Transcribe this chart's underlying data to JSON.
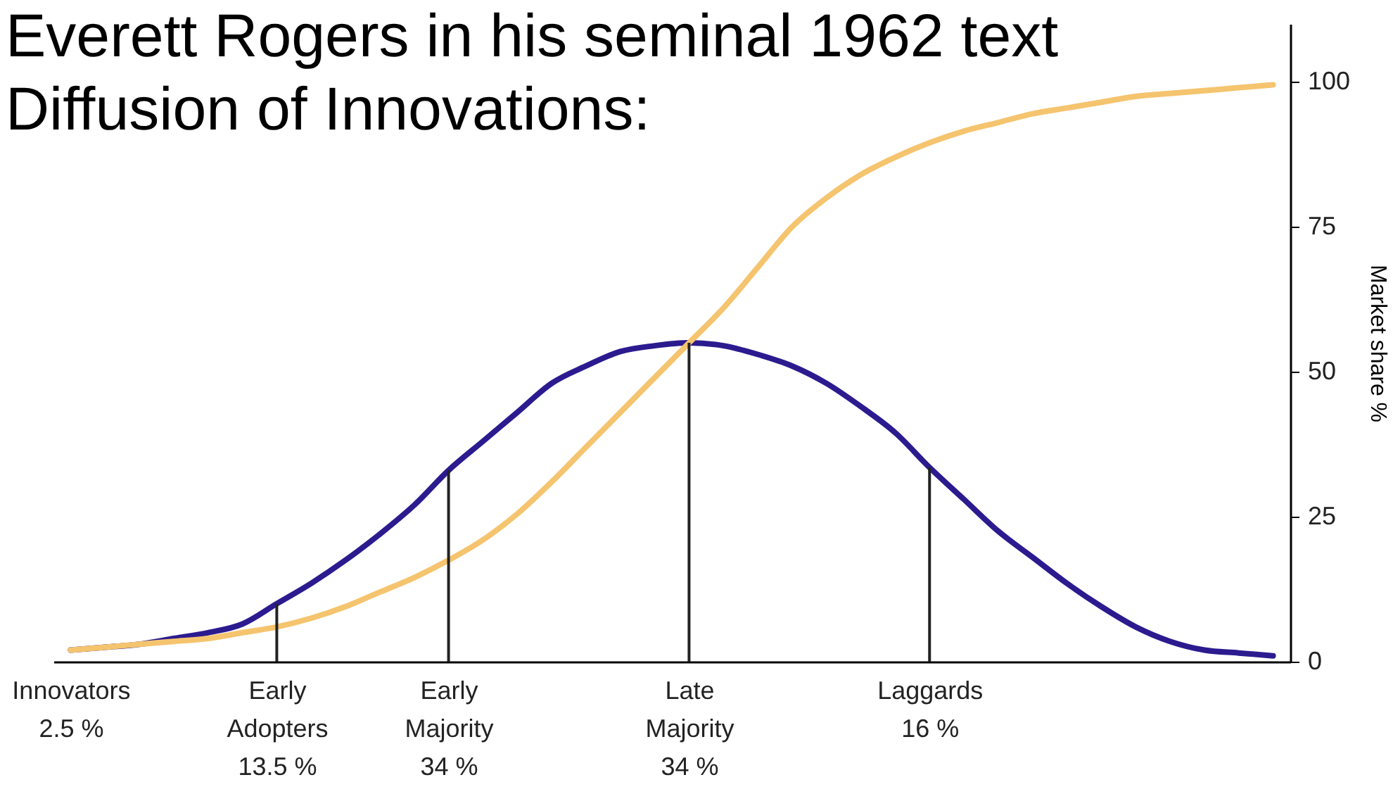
{
  "chart_data": {
    "type": "line",
    "title": "Everett Rogers in his seminal 1962 text Diffusion of Innovations:",
    "ylabel": "Market share %",
    "categories": [
      "Innovators\n2.5 %",
      null,
      null,
      null,
      null,
      null,
      "Early\nAdopters\n13.5 %",
      null,
      null,
      null,
      null,
      "Early\nMajority\n34 %",
      null,
      null,
      null,
      null,
      null,
      null,
      "Late\nMajority\n34 %",
      null,
      null,
      null,
      null,
      null,
      null,
      "Laggards\n16 %",
      null,
      null,
      null,
      null,
      null,
      null,
      null,
      null,
      null,
      null
    ],
    "series": [
      {
        "color": "#2b1b8f",
        "values": [
          2,
          2.5,
          3,
          4,
          5,
          6.5,
          10,
          13.5,
          17.5,
          22,
          27,
          33,
          38,
          43,
          48,
          51,
          53.5,
          54.5,
          55,
          54.5,
          53,
          51,
          48,
          44,
          39.5,
          33.5,
          28,
          22.5,
          18,
          13.5,
          9.5,
          6,
          3.5,
          2,
          1.5,
          1
        ]
      },
      {
        "color": "#f5c46e",
        "values": [
          2,
          2.5,
          3,
          3.5,
          4,
          5,
          6,
          7.5,
          9.5,
          12,
          14.5,
          17.5,
          21,
          25.5,
          31,
          37,
          43,
          49,
          55,
          61,
          68,
          75,
          80,
          84,
          87,
          89.5,
          91.5,
          93,
          94.5,
          95.5,
          96.5,
          97.5,
          98,
          98.5,
          99,
          99.5
        ]
      }
    ],
    "ylim": [
      0,
      110
    ],
    "yticks": [
      0,
      25,
      50,
      75,
      100
    ],
    "grid": false
  }
}
